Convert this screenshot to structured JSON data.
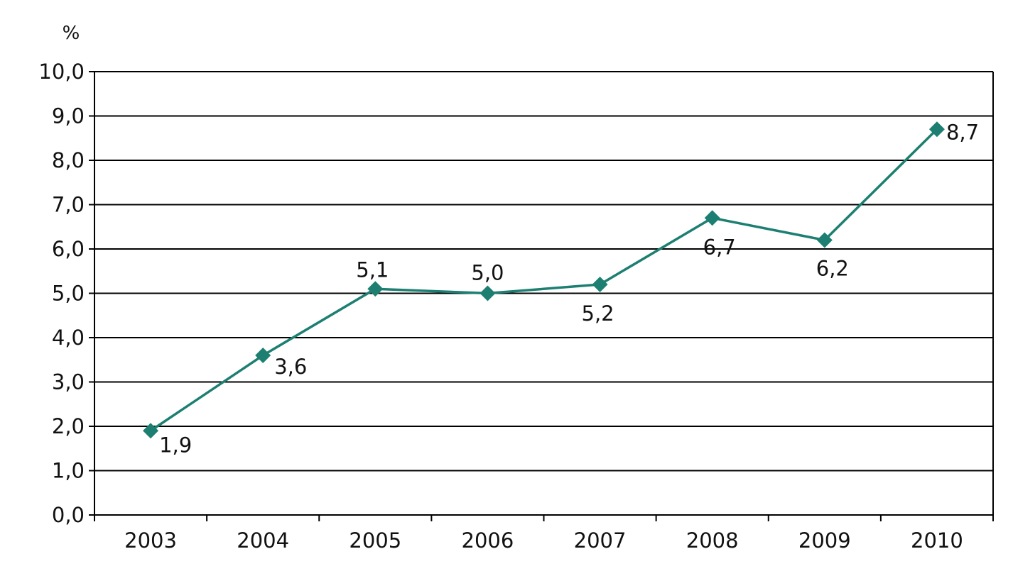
{
  "chart_data": {
    "type": "line",
    "title": "",
    "xlabel": "",
    "ylabel": "%",
    "categories": [
      "2003",
      "2004",
      "2005",
      "2006",
      "2007",
      "2008",
      "2009",
      "2010"
    ],
    "series": [
      {
        "values": [
          1.9,
          3.6,
          5.1,
          5.0,
          5.2,
          6.7,
          6.2,
          8.7
        ],
        "data_labels": [
          "1,9",
          "3,6",
          "5,1",
          "5,0",
          "5,2",
          "6,7",
          "6,2",
          "8,7"
        ],
        "color": "#1d7f72",
        "marker": "diamond"
      }
    ],
    "ylim": [
      0,
      10
    ],
    "yticks": [
      0,
      1,
      2,
      3,
      4,
      5,
      6,
      7,
      8,
      9,
      10
    ],
    "ytick_labels": [
      "0,0",
      "1,0",
      "2,0",
      "3,0",
      "4,0",
      "5,0",
      "6,0",
      "7,0",
      "8,0",
      "9,0",
      "10,0"
    ],
    "grid": true,
    "legend": "none"
  }
}
